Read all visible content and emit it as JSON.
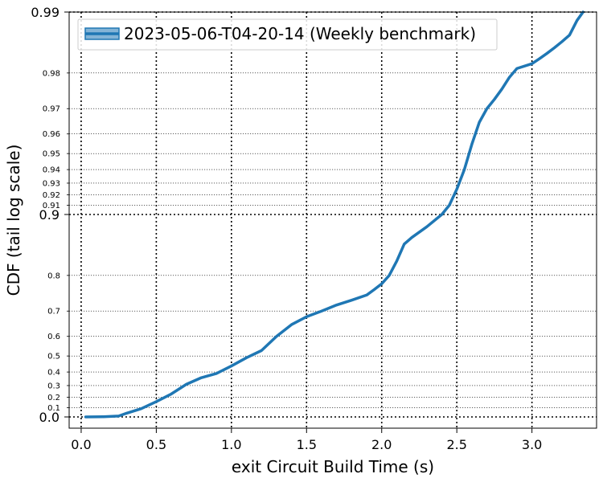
{
  "chart_data": {
    "type": "line",
    "title": "",
    "xlabel": "exit Circuit Build Time (s)",
    "ylabel": "CDF (tail log scale)",
    "xlim": [
      -0.08,
      3.43
    ],
    "y_scale": "tail-log (1/(1-p))",
    "y_major_ticks": [
      {
        "value": 0.0,
        "label": "0.0"
      },
      {
        "value": 0.9,
        "label": "0.9"
      },
      {
        "value": 0.99,
        "label": "0.99"
      }
    ],
    "y_minor_ticks": [
      {
        "value": 0.1,
        "label": "0.1"
      },
      {
        "value": 0.2,
        "label": "0.2"
      },
      {
        "value": 0.3,
        "label": "0.3"
      },
      {
        "value": 0.4,
        "label": "0.4"
      },
      {
        "value": 0.5,
        "label": "0.5"
      },
      {
        "value": 0.6,
        "label": "0.6"
      },
      {
        "value": 0.7,
        "label": "0.7"
      },
      {
        "value": 0.8,
        "label": "0.8"
      },
      {
        "value": 0.91,
        "label": "0.91"
      },
      {
        "value": 0.92,
        "label": "0.92"
      },
      {
        "value": 0.93,
        "label": "0.93"
      },
      {
        "value": 0.94,
        "label": "0.94"
      },
      {
        "value": 0.95,
        "label": "0.95"
      },
      {
        "value": 0.96,
        "label": "0.96"
      },
      {
        "value": 0.97,
        "label": "0.97"
      },
      {
        "value": 0.98,
        "label": "0.98"
      }
    ],
    "x_ticks": [
      {
        "value": 0.0,
        "label": "0.0"
      },
      {
        "value": 0.5,
        "label": "0.5"
      },
      {
        "value": 1.0,
        "label": "1.0"
      },
      {
        "value": 1.5,
        "label": "1.5"
      },
      {
        "value": 2.0,
        "label": "2.0"
      },
      {
        "value": 2.5,
        "label": "2.5"
      },
      {
        "value": 3.0,
        "label": "3.0"
      }
    ],
    "grid": true,
    "legend_position": "top-left",
    "series": [
      {
        "name": "2023-05-06-T04-20-14 (Weekly benchmark)",
        "color": "#1f77b4",
        "x": [
          0.03,
          0.15,
          0.25,
          0.3,
          0.4,
          0.5,
          0.6,
          0.7,
          0.8,
          0.9,
          1.0,
          1.1,
          1.2,
          1.3,
          1.4,
          1.5,
          1.6,
          1.7,
          1.8,
          1.9,
          1.95,
          2.0,
          2.05,
          2.1,
          2.15,
          2.2,
          2.3,
          2.4,
          2.45,
          2.5,
          2.55,
          2.6,
          2.65,
          2.7,
          2.75,
          2.8,
          2.85,
          2.9,
          3.0,
          3.05,
          3.1,
          3.15,
          3.2,
          3.25,
          3.3,
          3.34
        ],
        "y": [
          0.0,
          0.002,
          0.01,
          0.04,
          0.09,
          0.16,
          0.23,
          0.31,
          0.36,
          0.39,
          0.44,
          0.49,
          0.53,
          0.6,
          0.65,
          0.68,
          0.7,
          0.72,
          0.735,
          0.75,
          0.765,
          0.78,
          0.8,
          0.83,
          0.86,
          0.87,
          0.885,
          0.9,
          0.91,
          0.925,
          0.94,
          0.955,
          0.965,
          0.97,
          0.973,
          0.976,
          0.979,
          0.981,
          0.982,
          0.983,
          0.984,
          0.985,
          0.986,
          0.987,
          0.989,
          0.99
        ]
      }
    ]
  }
}
